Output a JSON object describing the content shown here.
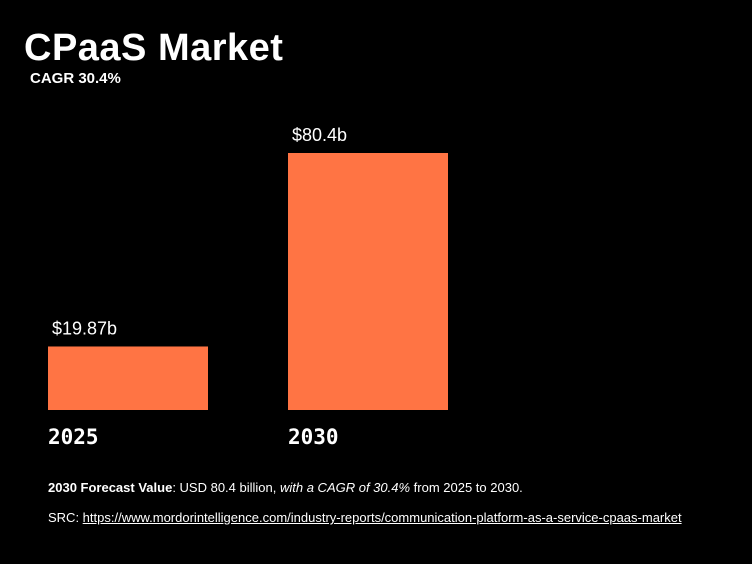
{
  "header": {
    "title": "CPaaS Market",
    "subtitle": "CAGR 30.4%"
  },
  "chart_data": {
    "type": "bar",
    "categories": [
      "2025",
      "2030"
    ],
    "values": [
      19.87,
      80.4
    ],
    "data_labels": [
      "$19.87b",
      "$80.4b"
    ],
    "bar_color": "#FF7444",
    "ylim": [
      0,
      80.4
    ],
    "grid": false
  },
  "footnote": {
    "label": "2030 Forecast Value",
    "text_1": ": USD 80.4 billion, ",
    "emphasis": "with a CAGR of 30.4%",
    "text_2": " from 2025 to 2030."
  },
  "source": {
    "prefix": "SRC: ",
    "link": "https://www.mordorintelligence.com/industry-reports/communication-platform-as-a-service-cpaas-market"
  }
}
